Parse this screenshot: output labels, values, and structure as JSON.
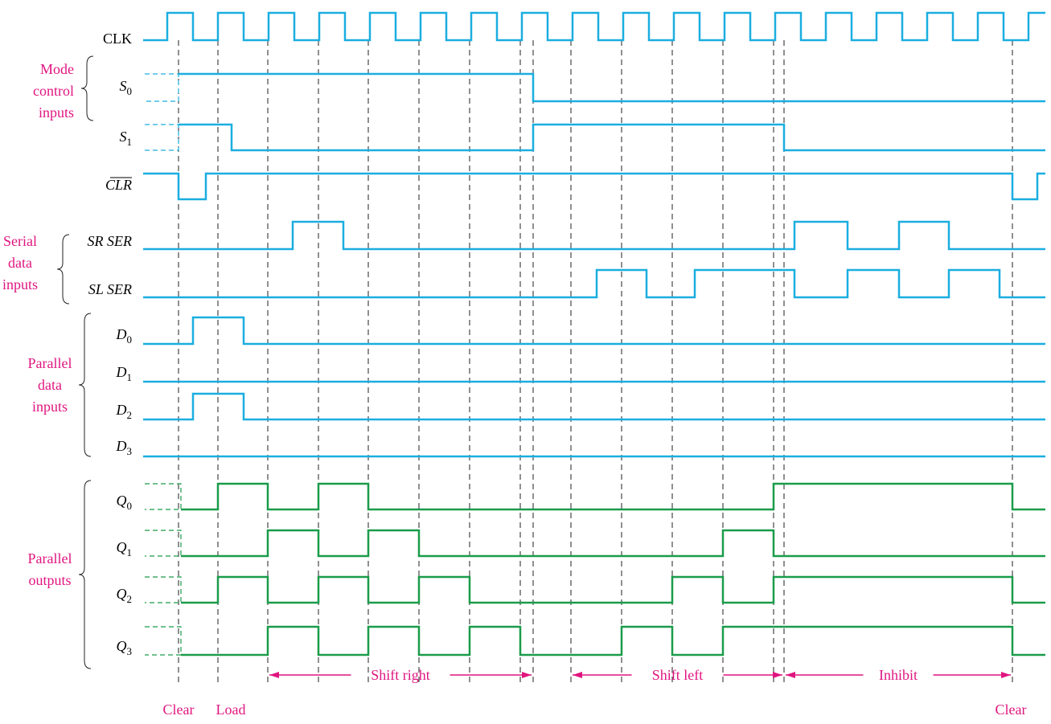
{
  "signals": [
    {
      "label": "CLK"
    },
    {
      "label": "S",
      "sub": "0"
    },
    {
      "label": "S",
      "sub": "1"
    },
    {
      "label": "CLR"
    },
    {
      "label": "SR SER"
    },
    {
      "label": "SL SER"
    },
    {
      "label": "D",
      "sub": "0"
    },
    {
      "label": "D",
      "sub": "1"
    },
    {
      "label": "D",
      "sub": "2"
    },
    {
      "label": "D",
      "sub": "3"
    },
    {
      "label": "Q",
      "sub": "0"
    },
    {
      "label": "Q",
      "sub": "1"
    },
    {
      "label": "Q",
      "sub": "2"
    },
    {
      "label": "Q",
      "sub": "3"
    }
  ],
  "groups": [
    {
      "lines": [
        "Mode",
        "control",
        "inputs"
      ]
    },
    {
      "lines": [
        "Serial",
        "data",
        "inputs"
      ]
    },
    {
      "lines": [
        "Parallel",
        "data",
        "inputs"
      ]
    },
    {
      "lines": [
        "Parallel",
        "outputs"
      ]
    }
  ],
  "intervals": [
    {
      "label": "Shift right"
    },
    {
      "label": "Shift left"
    },
    {
      "label": "Inhibit"
    }
  ],
  "events": [
    "Clear",
    "Load",
    "Clear"
  ]
}
